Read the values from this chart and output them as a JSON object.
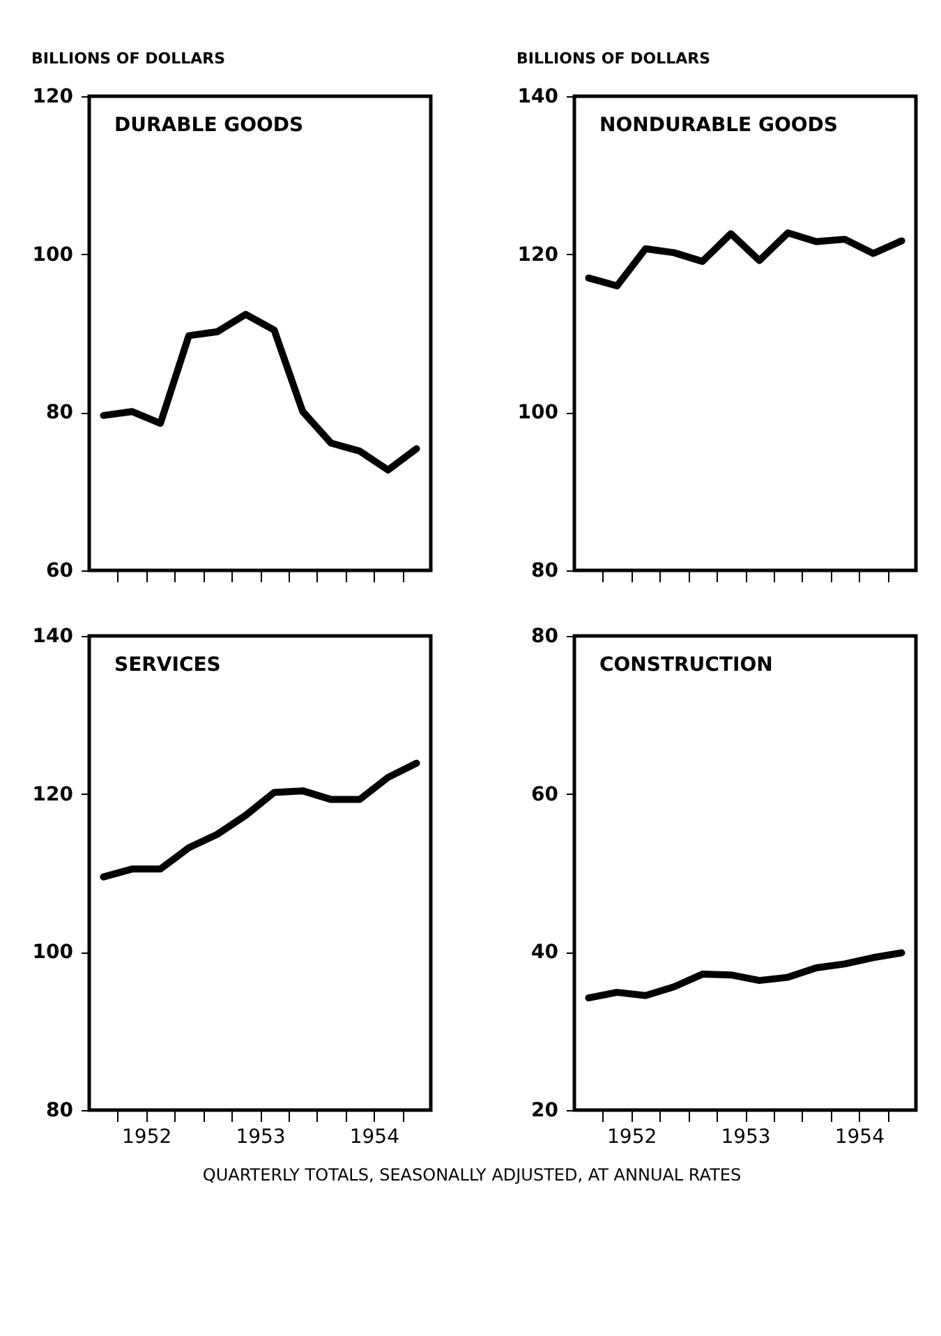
{
  "chart_data": [
    {
      "type": "line",
      "title": "DURABLE GOODS",
      "ylabel": "BILLIONS OF DOLLARS",
      "x": [
        1952.125,
        1952.375,
        1952.625,
        1952.875,
        1953.125,
        1953.375,
        1953.625,
        1953.875,
        1954.125,
        1954.375,
        1954.625,
        1954.875
      ],
      "series": [
        {
          "color": "#000000",
          "values": [
            79.6,
            80.1,
            78.6,
            89.7,
            90.2,
            92.4,
            90.4,
            80.1,
            76.1,
            75.1,
            72.7,
            75.4
          ]
        }
      ],
      "xlim": [
        1952.0,
        1955.0
      ],
      "xticks": [
        {
          "value": 1952.25,
          "label": null
        },
        {
          "value": 1952.5,
          "label": null
        },
        {
          "value": 1952.75,
          "label": null
        },
        {
          "value": 1953.0,
          "label": null
        },
        {
          "value": 1953.25,
          "label": null
        },
        {
          "value": 1953.5,
          "label": null
        },
        {
          "value": 1953.75,
          "label": null
        },
        {
          "value": 1954.0,
          "label": null
        },
        {
          "value": 1954.25,
          "label": null
        },
        {
          "value": 1954.5,
          "label": null
        },
        {
          "value": 1954.75,
          "label": null
        }
      ],
      "ylim": [
        60,
        120
      ],
      "yticks": [
        60,
        80,
        100,
        120
      ],
      "tick_labels": "y",
      "grid": false,
      "marker": "none",
      "line_style": "solid"
    },
    {
      "type": "line",
      "title": "NONDURABLE GOODS",
      "ylabel": "BILLIONS OF DOLLARS",
      "x": [
        1952.125,
        1952.375,
        1952.625,
        1952.875,
        1953.125,
        1953.375,
        1953.625,
        1953.875,
        1954.125,
        1954.375,
        1954.625,
        1954.875
      ],
      "series": [
        {
          "color": "#000000",
          "values": [
            117.0,
            116.0,
            120.7,
            120.2,
            119.1,
            122.6,
            119.2,
            122.7,
            121.6,
            121.9,
            120.1,
            121.7
          ]
        }
      ],
      "xlim": [
        1952.0,
        1955.0
      ],
      "xticks": [
        {
          "value": 1952.25,
          "label": null
        },
        {
          "value": 1952.5,
          "label": null
        },
        {
          "value": 1952.75,
          "label": null
        },
        {
          "value": 1953.0,
          "label": null
        },
        {
          "value": 1953.25,
          "label": null
        },
        {
          "value": 1953.5,
          "label": null
        },
        {
          "value": 1953.75,
          "label": null
        },
        {
          "value": 1954.0,
          "label": null
        },
        {
          "value": 1954.25,
          "label": null
        },
        {
          "value": 1954.5,
          "label": null
        },
        {
          "value": 1954.75,
          "label": null
        }
      ],
      "ylim": [
        80,
        140
      ],
      "yticks": [
        80,
        100,
        120,
        140
      ],
      "tick_labels": "y",
      "grid": false,
      "marker": "none",
      "line_style": "solid"
    },
    {
      "type": "line",
      "title": "SERVICES",
      "x": [
        1952.125,
        1952.375,
        1952.625,
        1952.875,
        1953.125,
        1953.375,
        1953.625,
        1953.875,
        1954.125,
        1954.375,
        1954.625,
        1954.875
      ],
      "series": [
        {
          "color": "#000000",
          "values": [
            109.5,
            110.5,
            110.5,
            113.2,
            114.9,
            117.3,
            120.2,
            120.4,
            119.3,
            119.3,
            122.1,
            123.9
          ]
        }
      ],
      "xlim": [
        1952.0,
        1955.0
      ],
      "xticks": [
        {
          "value": 1952.25,
          "label": null
        },
        {
          "value": 1952.5,
          "label": "1952"
        },
        {
          "value": 1952.75,
          "label": null
        },
        {
          "value": 1953.0,
          "label": null
        },
        {
          "value": 1953.25,
          "label": null
        },
        {
          "value": 1953.5,
          "label": "1953"
        },
        {
          "value": 1953.75,
          "label": null
        },
        {
          "value": 1954.0,
          "label": null
        },
        {
          "value": 1954.25,
          "label": null
        },
        {
          "value": 1954.5,
          "label": "1954"
        },
        {
          "value": 1954.75,
          "label": null
        }
      ],
      "ylim": [
        80,
        140
      ],
      "yticks": [
        80,
        100,
        120,
        140
      ],
      "grid": false,
      "marker": "none",
      "line_style": "solid"
    },
    {
      "type": "line",
      "title": "CONSTRUCTION",
      "x": [
        1952.125,
        1952.375,
        1952.625,
        1952.875,
        1953.125,
        1953.375,
        1953.625,
        1953.875,
        1954.125,
        1954.375,
        1954.625,
        1954.875
      ],
      "series": [
        {
          "color": "#000000",
          "values": [
            34.2,
            34.9,
            34.5,
            35.6,
            37.2,
            37.1,
            36.4,
            36.8,
            38.0,
            38.5,
            39.3,
            39.9
          ]
        }
      ],
      "xlim": [
        1952.0,
        1955.0
      ],
      "xticks": [
        {
          "value": 1952.25,
          "label": null
        },
        {
          "value": 1952.5,
          "label": "1952"
        },
        {
          "value": 1952.75,
          "label": null
        },
        {
          "value": 1953.0,
          "label": null
        },
        {
          "value": 1953.25,
          "label": null
        },
        {
          "value": 1953.5,
          "label": "1953"
        },
        {
          "value": 1953.75,
          "label": null
        },
        {
          "value": 1954.0,
          "label": null
        },
        {
          "value": 1954.25,
          "label": null
        },
        {
          "value": 1954.5,
          "label": "1954"
        },
        {
          "value": 1954.75,
          "label": null
        }
      ],
      "ylim": [
        20,
        80
      ],
      "yticks": [
        20,
        40,
        60,
        80
      ],
      "grid": false,
      "marker": "none",
      "line_style": "solid",
      "annotations": [
        "QUARTERLY TOTALS, SEASONALLY ADJUSTED, AT ANNUAL RATES"
      ]
    }
  ]
}
